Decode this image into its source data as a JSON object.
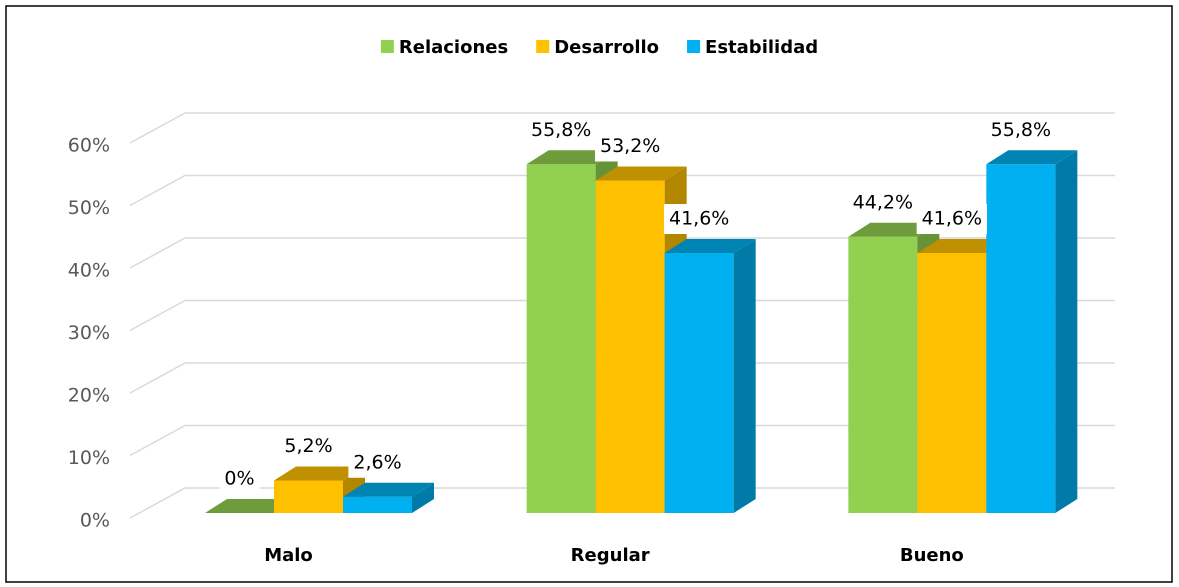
{
  "chart_data": {
    "type": "bar3d",
    "categories": [
      "Malo",
      "Regular",
      "Bueno"
    ],
    "series": [
      {
        "name": "Relaciones",
        "color": "#92d050",
        "values": [
          0,
          55.8,
          44.2
        ],
        "value_labels": [
          "0%",
          "55,8%",
          "44,2%"
        ]
      },
      {
        "name": "Desarrollo",
        "color": "#ffc000",
        "values": [
          5.2,
          53.2,
          41.6
        ],
        "value_labels": [
          "5,2%",
          "53,2%",
          "41,6%"
        ]
      },
      {
        "name": "Estabilidad",
        "color": "#00b0f0",
        "values": [
          2.6,
          41.6,
          55.8
        ],
        "value_labels": [
          "2,6%",
          "41,6%",
          "55,8%"
        ]
      }
    ],
    "ylim": [
      0,
      60
    ],
    "yticks": [
      {
        "value": 0,
        "label": "0%"
      },
      {
        "value": 10,
        "label": "10%"
      },
      {
        "value": 20,
        "label": "20%"
      },
      {
        "value": 30,
        "label": "30%"
      },
      {
        "value": 40,
        "label": "40%"
      },
      {
        "value": 50,
        "label": "50%"
      },
      {
        "value": 60,
        "label": "60%"
      }
    ],
    "grid": true,
    "legend": "top"
  }
}
